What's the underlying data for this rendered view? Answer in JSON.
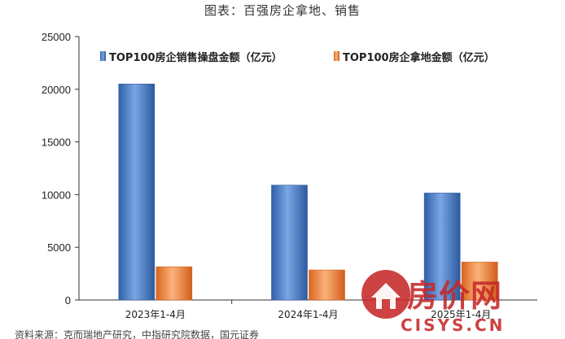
{
  "chart_data": {
    "type": "bar",
    "title": "图表：百强房企拿地、销售",
    "categories": [
      "2023年1-4月",
      "2024年1-4月",
      "2025年1-4月"
    ],
    "series": [
      {
        "name": "TOP100房企销售操盘金额（亿元）",
        "values": [
          20500,
          10900,
          10150
        ],
        "color": "#4a7fc6"
      },
      {
        "name": "TOP100房企拿地金额（亿元）",
        "values": [
          3150,
          2850,
          3600
        ],
        "color": "#f08a3c"
      }
    ],
    "yticks": [
      0,
      5000,
      10000,
      15000,
      20000,
      25000
    ],
    "ylim": [
      0,
      25000
    ],
    "grid": false,
    "legend_position": "top"
  },
  "footnote": "资料来源：克而瑞地产研究，中指研究院数据，国元证券",
  "watermark": {
    "text": "房价网",
    "domain": "CISYS.CN"
  }
}
